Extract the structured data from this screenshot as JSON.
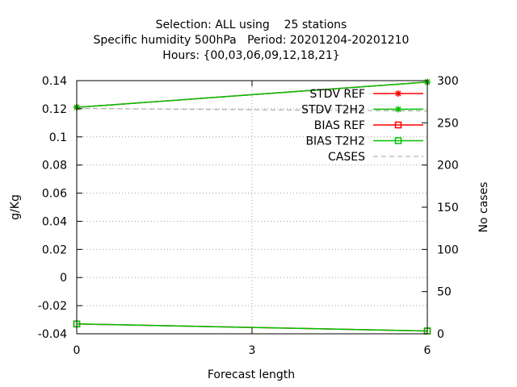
{
  "chart_data": {
    "type": "line",
    "title_lines": [
      "Selection: ALL using    25 stations",
      "Specific humidity 500hPa   Period: 20201204-20201210",
      "Hours: {00,03,06,09,12,18,21}"
    ],
    "xlabel": "Forecast length",
    "ylabel": "g/Kg",
    "y2label": "No cases",
    "x_ticks": [
      "0",
      "3",
      "6"
    ],
    "y_ticks": [
      "0.14",
      "0.12",
      "0.1",
      "0.08",
      "0.06",
      "0.04",
      "0.02",
      "0",
      "-0.02",
      "-0.04"
    ],
    "y2_ticks": [
      "300",
      "250",
      "200",
      "150",
      "100",
      "50",
      "0"
    ],
    "xlim": [
      0,
      6
    ],
    "ylim": [
      -0.04,
      0.14
    ],
    "y2lim": [
      0,
      300
    ],
    "grid": true,
    "legend_position": "top-right",
    "x": [
      0,
      6
    ],
    "series": [
      {
        "name": "STDV REF",
        "axis": "y1",
        "values": [
          0.121,
          0.139
        ],
        "color": "#ff0000",
        "marker": "star",
        "dash": false
      },
      {
        "name": "STDV T2H2",
        "axis": "y1",
        "values": [
          0.121,
          0.139
        ],
        "color": "#00c000",
        "marker": "star",
        "dash": false
      },
      {
        "name": "BIAS REF",
        "axis": "y1",
        "values": [
          -0.033,
          -0.038
        ],
        "color": "#ff0000",
        "marker": "square",
        "dash": false
      },
      {
        "name": "BIAS T2H2",
        "axis": "y1",
        "values": [
          -0.033,
          -0.038
        ],
        "color": "#00c000",
        "marker": "square",
        "dash": false
      },
      {
        "name": "CASES",
        "axis": "y2",
        "values": [
          267,
          264
        ],
        "color": "#a0a0a0",
        "marker": "none",
        "dash": true
      }
    ]
  }
}
